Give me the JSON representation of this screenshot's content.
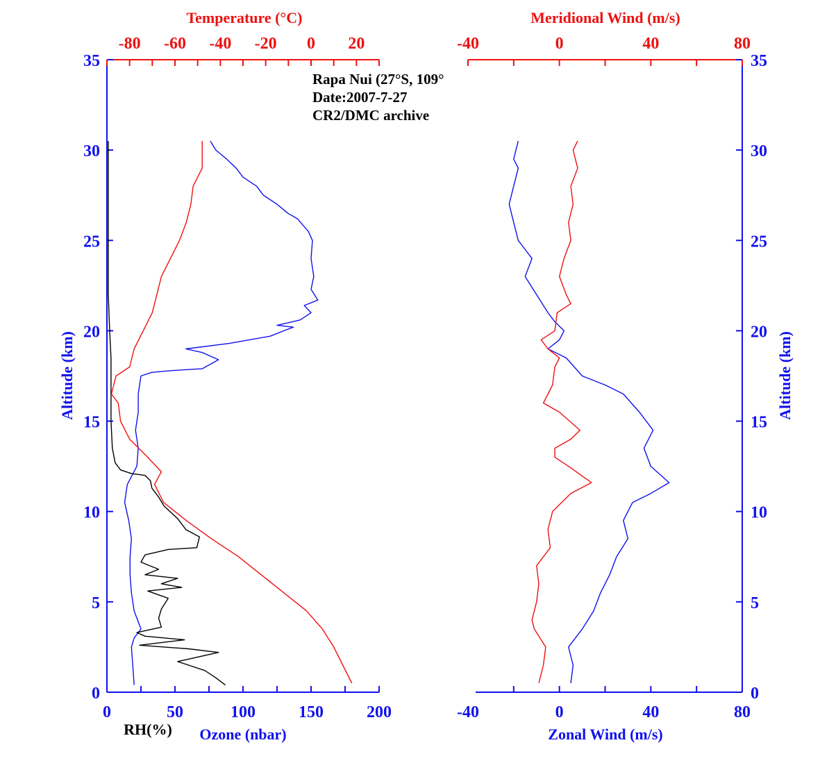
{
  "colors": {
    "blue": "#1010ee",
    "red": "#ee1010",
    "black": "#000000"
  },
  "annotation": [
    "Rapa Nui (27°S, 109°",
    "Date:2007-7-27",
    "CR2/DMC archive"
  ],
  "chart_data": [
    {
      "type": "line",
      "y_axis": {
        "label": "Altitude (km)",
        "range": [
          0,
          35
        ],
        "ticks": [
          "0",
          "5",
          "10",
          "15",
          "20",
          "25",
          "30",
          "35"
        ]
      },
      "bottom_axis": {
        "label": "Ozone (nbar)",
        "range": [
          0,
          200
        ],
        "ticks": [
          "0",
          "50",
          "100",
          "150",
          "200"
        ],
        "secondary_label": "RH(%)"
      },
      "top_axis": {
        "label": "Temperature (°C)",
        "range": [
          -90,
          30
        ],
        "ticks": [
          "-80",
          "-60",
          "-40",
          "-20",
          "0",
          "20"
        ]
      },
      "series": [
        {
          "name": "Ozone (nbar)",
          "axis": "bottom",
          "color": "blue",
          "points": [
            [
              20,
              0.4
            ],
            [
              19,
              1.5
            ],
            [
              18,
              2.5
            ],
            [
              20,
              3.0
            ],
            [
              25,
              3.5
            ],
            [
              20,
              4.5
            ],
            [
              18,
              5.5
            ],
            [
              17,
              6.5
            ],
            [
              17,
              7.5
            ],
            [
              18,
              8.5
            ],
            [
              16,
              9.5
            ],
            [
              13,
              10.5
            ],
            [
              15,
              11.5
            ],
            [
              22,
              12.5
            ],
            [
              23,
              13.5
            ],
            [
              21,
              14.5
            ],
            [
              23,
              15.5
            ],
            [
              23,
              16.5
            ],
            [
              25,
              17.5
            ],
            [
              33,
              17.7
            ],
            [
              48,
              17.8
            ],
            [
              70,
              17.9
            ],
            [
              82,
              18.4
            ],
            [
              70,
              18.8
            ],
            [
              58,
              19.0
            ],
            [
              90,
              19.3
            ],
            [
              120,
              19.7
            ],
            [
              130,
              20.0
            ],
            [
              137,
              20.2
            ],
            [
              125,
              20.3
            ],
            [
              142,
              20.6
            ],
            [
              150,
              21.0
            ],
            [
              145,
              21.4
            ],
            [
              155,
              21.7
            ],
            [
              150,
              22.3
            ],
            [
              152,
              23.0
            ],
            [
              150,
              24.0
            ],
            [
              151,
              25.0
            ],
            [
              148,
              25.5
            ],
            [
              140,
              26.2
            ],
            [
              133,
              26.5
            ],
            [
              125,
              27.0
            ],
            [
              115,
              27.5
            ],
            [
              110,
              28.0
            ],
            [
              100,
              28.5
            ],
            [
              95,
              29.0
            ],
            [
              88,
              29.5
            ],
            [
              80,
              30.0
            ],
            [
              76,
              30.5
            ]
          ]
        },
        {
          "name": "RH(%)",
          "axis": "bottom",
          "color": "black",
          "points": [
            [
              87,
              0.4
            ],
            [
              80,
              0.8
            ],
            [
              72,
              1.2
            ],
            [
              60,
              1.5
            ],
            [
              52,
              1.7
            ],
            [
              82,
              2.2
            ],
            [
              60,
              2.4
            ],
            [
              24,
              2.6
            ],
            [
              57,
              2.9
            ],
            [
              28,
              3.1
            ],
            [
              22,
              3.3
            ],
            [
              40,
              3.6
            ],
            [
              38,
              4.1
            ],
            [
              40,
              4.6
            ],
            [
              45,
              5.2
            ],
            [
              30,
              5.6
            ],
            [
              55,
              5.8
            ],
            [
              40,
              6.0
            ],
            [
              52,
              6.3
            ],
            [
              28,
              6.5
            ],
            [
              38,
              6.8
            ],
            [
              25,
              7.2
            ],
            [
              28,
              7.6
            ],
            [
              45,
              7.9
            ],
            [
              66,
              8.0
            ],
            [
              68,
              8.6
            ],
            [
              58,
              9.0
            ],
            [
              52,
              9.6
            ],
            [
              42,
              10.3
            ],
            [
              38,
              10.8
            ],
            [
              33,
              11.3
            ],
            [
              32,
              11.7
            ],
            [
              28,
              12.0
            ],
            [
              18,
              12.1
            ],
            [
              10,
              12.3
            ],
            [
              6,
              12.7
            ],
            [
              4,
              13.5
            ],
            [
              3,
              15.0
            ],
            [
              3,
              17.0
            ],
            [
              3,
              18.5
            ],
            [
              2,
              20.0
            ],
            [
              1,
              22.0
            ],
            [
              1,
              24.0
            ],
            [
              1,
              26.0
            ],
            [
              1,
              28.0
            ],
            [
              1,
              30.5
            ]
          ]
        },
        {
          "name": "Temperature (°C)",
          "axis": "top",
          "color": "red",
          "points": [
            [
              18,
              0.5
            ],
            [
              14,
              1.5
            ],
            [
              10,
              2.5
            ],
            [
              5,
              3.5
            ],
            [
              -2,
              4.5
            ],
            [
              -12,
              5.5
            ],
            [
              -22,
              6.5
            ],
            [
              -32,
              7.5
            ],
            [
              -44,
              8.5
            ],
            [
              -55,
              9.5
            ],
            [
              -65,
              10.5
            ],
            [
              -69,
              11.5
            ],
            [
              -66,
              12.2
            ],
            [
              -72,
              13.0
            ],
            [
              -80,
              14.0
            ],
            [
              -84,
              15.0
            ],
            [
              -85,
              16.0
            ],
            [
              -88,
              16.5
            ],
            [
              -86,
              17.5
            ],
            [
              -80,
              18.0
            ],
            [
              -78,
              19.0
            ],
            [
              -74,
              20.0
            ],
            [
              -70,
              21.0
            ],
            [
              -68,
              22.0
            ],
            [
              -66,
              23.0
            ],
            [
              -62,
              24.0
            ],
            [
              -58,
              25.0
            ],
            [
              -55,
              26.0
            ],
            [
              -53,
              27.0
            ],
            [
              -52,
              28.0
            ],
            [
              -48,
              29.0
            ],
            [
              -48,
              30.5
            ]
          ]
        }
      ]
    },
    {
      "type": "line",
      "y_axis": {
        "label": "Altitude (km)",
        "range": [
          0,
          35
        ],
        "ticks": [
          "0",
          "5",
          "10",
          "15",
          "20",
          "25",
          "30",
          "35"
        ]
      },
      "bottom_axis": {
        "label": "Zonal Wind (m/s)",
        "range": [
          -40,
          80
        ],
        "ticks": [
          "-40",
          "0",
          "40",
          "80"
        ]
      },
      "top_axis": {
        "label": "Meridional Wind (m/s)",
        "range": [
          -40,
          80
        ],
        "ticks": [
          "-40",
          "0",
          "40",
          "80"
        ]
      },
      "series": [
        {
          "name": "Zonal Wind (m/s)",
          "axis": "bottom",
          "color": "blue",
          "points": [
            [
              5,
              0.5
            ],
            [
              6,
              1.5
            ],
            [
              4,
              2.5
            ],
            [
              10,
              3.5
            ],
            [
              15,
              4.5
            ],
            [
              18,
              5.5
            ],
            [
              22,
              6.5
            ],
            [
              25,
              7.5
            ],
            [
              30,
              8.5
            ],
            [
              28,
              9.5
            ],
            [
              32,
              10.5
            ],
            [
              40,
              11.0
            ],
            [
              48,
              11.6
            ],
            [
              40,
              12.5
            ],
            [
              37,
              13.5
            ],
            [
              41,
              14.5
            ],
            [
              35,
              15.5
            ],
            [
              28,
              16.5
            ],
            [
              20,
              17.0
            ],
            [
              10,
              17.5
            ],
            [
              3,
              18.5
            ],
            [
              -5,
              19.0
            ],
            [
              0,
              19.5
            ],
            [
              2,
              20.0
            ],
            [
              -2,
              20.5
            ],
            [
              -5,
              21.0
            ],
            [
              -10,
              22.0
            ],
            [
              -15,
              23.0
            ],
            [
              -12,
              24.0
            ],
            [
              -18,
              25.0
            ],
            [
              -20,
              26.0
            ],
            [
              -22,
              27.0
            ],
            [
              -20,
              28.0
            ],
            [
              -18,
              29.0
            ],
            [
              -20,
              29.5
            ],
            [
              -18,
              30.5
            ]
          ]
        },
        {
          "name": "Meridional Wind (m/s)",
          "axis": "top",
          "color": "red",
          "points": [
            [
              -9,
              0.5
            ],
            [
              -7,
              1.5
            ],
            [
              -6,
              2.5
            ],
            [
              -11,
              3.5
            ],
            [
              -12,
              4.0
            ],
            [
              -10,
              5.0
            ],
            [
              -9,
              6.0
            ],
            [
              -10,
              7.0
            ],
            [
              -4,
              8.0
            ],
            [
              -5,
              9.0
            ],
            [
              -3,
              10.0
            ],
            [
              5,
              11.0
            ],
            [
              14,
              11.6
            ],
            [
              4,
              12.5
            ],
            [
              -2,
              13.0
            ],
            [
              -2,
              13.5
            ],
            [
              5,
              14.0
            ],
            [
              9,
              14.5
            ],
            [
              0,
              15.5
            ],
            [
              -7,
              16.0
            ],
            [
              -5,
              16.5
            ],
            [
              -3,
              17.0
            ],
            [
              -2,
              18.0
            ],
            [
              0,
              18.5
            ],
            [
              -5,
              19.0
            ],
            [
              -8,
              19.5
            ],
            [
              -2,
              20.0
            ],
            [
              -1,
              21.0
            ],
            [
              5,
              21.5
            ],
            [
              3,
              22.0
            ],
            [
              0,
              23.0
            ],
            [
              2,
              24.0
            ],
            [
              5,
              25.0
            ],
            [
              4,
              26.0
            ],
            [
              6,
              27.0
            ],
            [
              5,
              28.0
            ],
            [
              8,
              29.0
            ],
            [
              6,
              30.0
            ],
            [
              8,
              30.5
            ]
          ]
        }
      ]
    }
  ]
}
